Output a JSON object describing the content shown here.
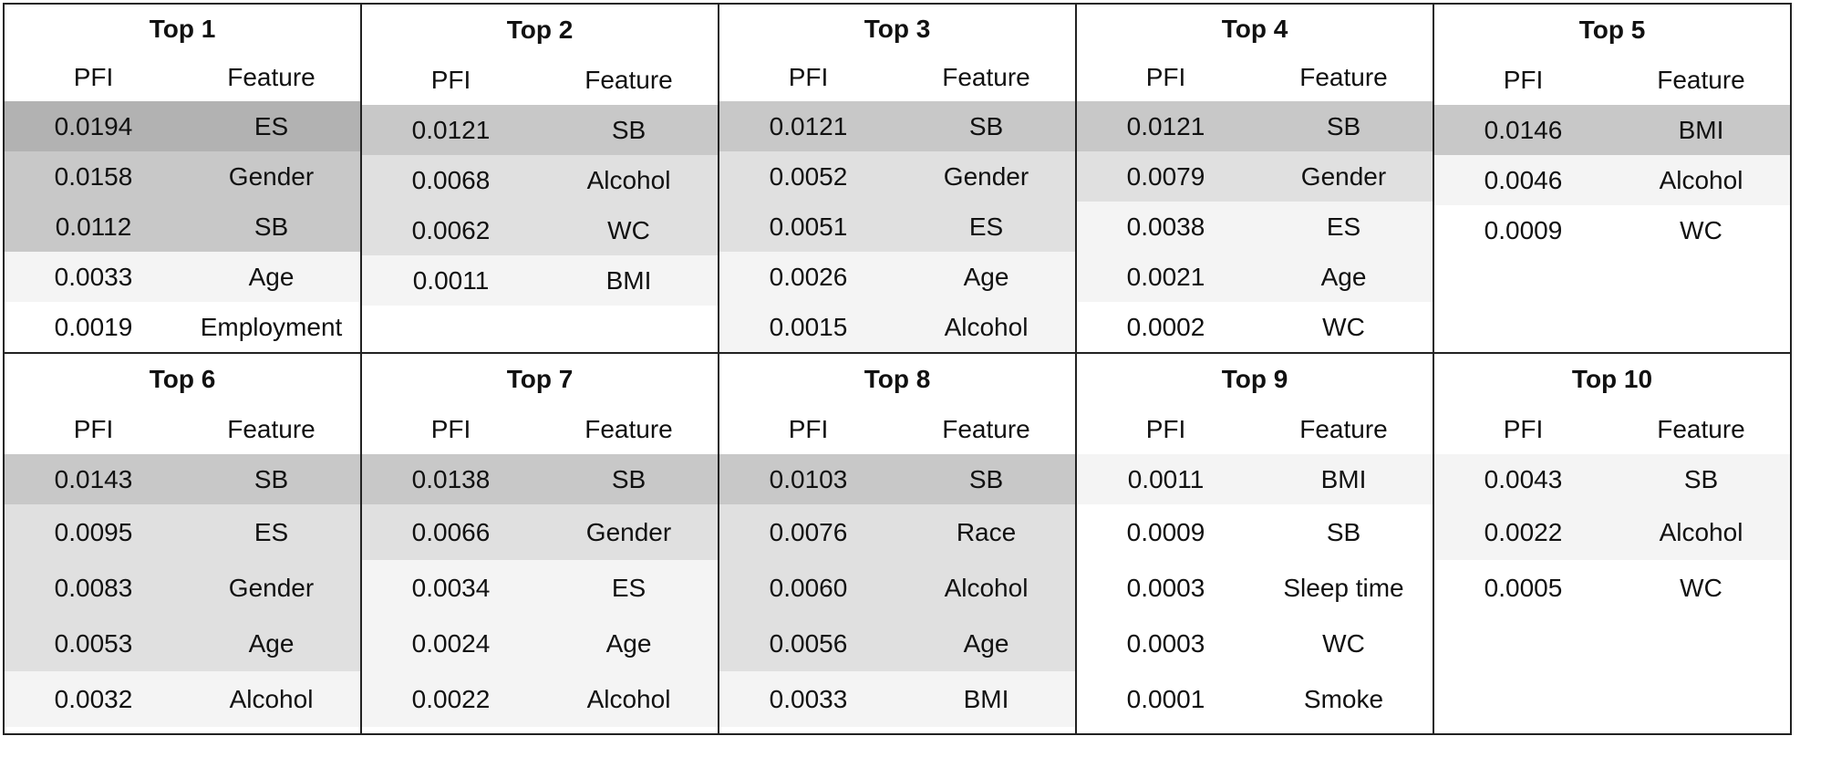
{
  "columns": {
    "pfi": "PFI",
    "feature": "Feature"
  },
  "groups": [
    {
      "title": "Top 1",
      "rows": [
        {
          "pfi": "0.0194",
          "feature": "ES",
          "shade": "#b2b2b2"
        },
        {
          "pfi": "0.0158",
          "feature": "Gender",
          "shade": "#c8c8c8"
        },
        {
          "pfi": "0.0112",
          "feature": "SB",
          "shade": "#c8c8c8"
        },
        {
          "pfi": "0.0033",
          "feature": "Age",
          "shade": "#f4f4f4"
        },
        {
          "pfi": "0.0019",
          "feature": "Employment",
          "shade": "#ffffff"
        }
      ]
    },
    {
      "title": "Top 2",
      "rows": [
        {
          "pfi": "0.0121",
          "feature": "SB",
          "shade": "#c8c8c8"
        },
        {
          "pfi": "0.0068",
          "feature": "Alcohol",
          "shade": "#e0e0e0"
        },
        {
          "pfi": "0.0062",
          "feature": "WC",
          "shade": "#e0e0e0"
        },
        {
          "pfi": "0.0011",
          "feature": "BMI",
          "shade": "#f4f4f4"
        }
      ]
    },
    {
      "title": "Top 3",
      "rows": [
        {
          "pfi": "0.0121",
          "feature": "SB",
          "shade": "#c8c8c8"
        },
        {
          "pfi": "0.0052",
          "feature": "Gender",
          "shade": "#e0e0e0"
        },
        {
          "pfi": "0.0051",
          "feature": "ES",
          "shade": "#e0e0e0"
        },
        {
          "pfi": "0.0026",
          "feature": "Age",
          "shade": "#f4f4f4"
        },
        {
          "pfi": "0.0015",
          "feature": "Alcohol",
          "shade": "#f4f4f4"
        }
      ]
    },
    {
      "title": "Top 4",
      "rows": [
        {
          "pfi": "0.0121",
          "feature": "SB",
          "shade": "#c8c8c8"
        },
        {
          "pfi": "0.0079",
          "feature": "Gender",
          "shade": "#e0e0e0"
        },
        {
          "pfi": "0.0038",
          "feature": "ES",
          "shade": "#f4f4f4"
        },
        {
          "pfi": "0.0021",
          "feature": "Age",
          "shade": "#f4f4f4"
        },
        {
          "pfi": "0.0002",
          "feature": "WC",
          "shade": "#ffffff"
        }
      ]
    },
    {
      "title": "Top 5",
      "rows": [
        {
          "pfi": "0.0146",
          "feature": "BMI",
          "shade": "#c8c8c8"
        },
        {
          "pfi": "0.0046",
          "feature": "Alcohol",
          "shade": "#f4f4f4"
        },
        {
          "pfi": "0.0009",
          "feature": "WC",
          "shade": "#ffffff"
        }
      ]
    },
    {
      "title": "Top 6",
      "rows": [
        {
          "pfi": "0.0143",
          "feature": "SB",
          "shade": "#c8c8c8"
        },
        {
          "pfi": "0.0095",
          "feature": "ES",
          "shade": "#e0e0e0"
        },
        {
          "pfi": "0.0083",
          "feature": "Gender",
          "shade": "#e0e0e0"
        },
        {
          "pfi": "0.0053",
          "feature": "Age",
          "shade": "#e0e0e0"
        },
        {
          "pfi": "0.0032",
          "feature": "Alcohol",
          "shade": "#f4f4f4"
        }
      ]
    },
    {
      "title": "Top 7",
      "rows": [
        {
          "pfi": "0.0138",
          "feature": "SB",
          "shade": "#c8c8c8"
        },
        {
          "pfi": "0.0066",
          "feature": "Gender",
          "shade": "#e0e0e0"
        },
        {
          "pfi": "0.0034",
          "feature": "ES",
          "shade": "#f4f4f4"
        },
        {
          "pfi": "0.0024",
          "feature": "Age",
          "shade": "#f4f4f4"
        },
        {
          "pfi": "0.0022",
          "feature": "Alcohol",
          "shade": "#f4f4f4"
        }
      ]
    },
    {
      "title": "Top 8",
      "rows": [
        {
          "pfi": "0.0103",
          "feature": "SB",
          "shade": "#c8c8c8"
        },
        {
          "pfi": "0.0076",
          "feature": "Race",
          "shade": "#e0e0e0"
        },
        {
          "pfi": "0.0060",
          "feature": "Alcohol",
          "shade": "#e0e0e0"
        },
        {
          "pfi": "0.0056",
          "feature": "Age",
          "shade": "#e0e0e0"
        },
        {
          "pfi": "0.0033",
          "feature": "BMI",
          "shade": "#f4f4f4"
        }
      ]
    },
    {
      "title": "Top 9",
      "rows": [
        {
          "pfi": "0.0011",
          "feature": "BMI",
          "shade": "#f4f4f4"
        },
        {
          "pfi": "0.0009",
          "feature": "SB",
          "shade": "#ffffff"
        },
        {
          "pfi": "0.0003",
          "feature": "Sleep time",
          "shade": "#ffffff"
        },
        {
          "pfi": "0.0003",
          "feature": "WC",
          "shade": "#ffffff"
        },
        {
          "pfi": "0.0001",
          "feature": "Smoke",
          "shade": "#ffffff"
        }
      ]
    },
    {
      "title": "Top 10",
      "rows": [
        {
          "pfi": "0.0043",
          "feature": "SB",
          "shade": "#f4f4f4"
        },
        {
          "pfi": "0.0022",
          "feature": "Alcohol",
          "shade": "#f4f4f4"
        },
        {
          "pfi": "0.0005",
          "feature": "WC",
          "shade": "#ffffff"
        }
      ]
    }
  ]
}
